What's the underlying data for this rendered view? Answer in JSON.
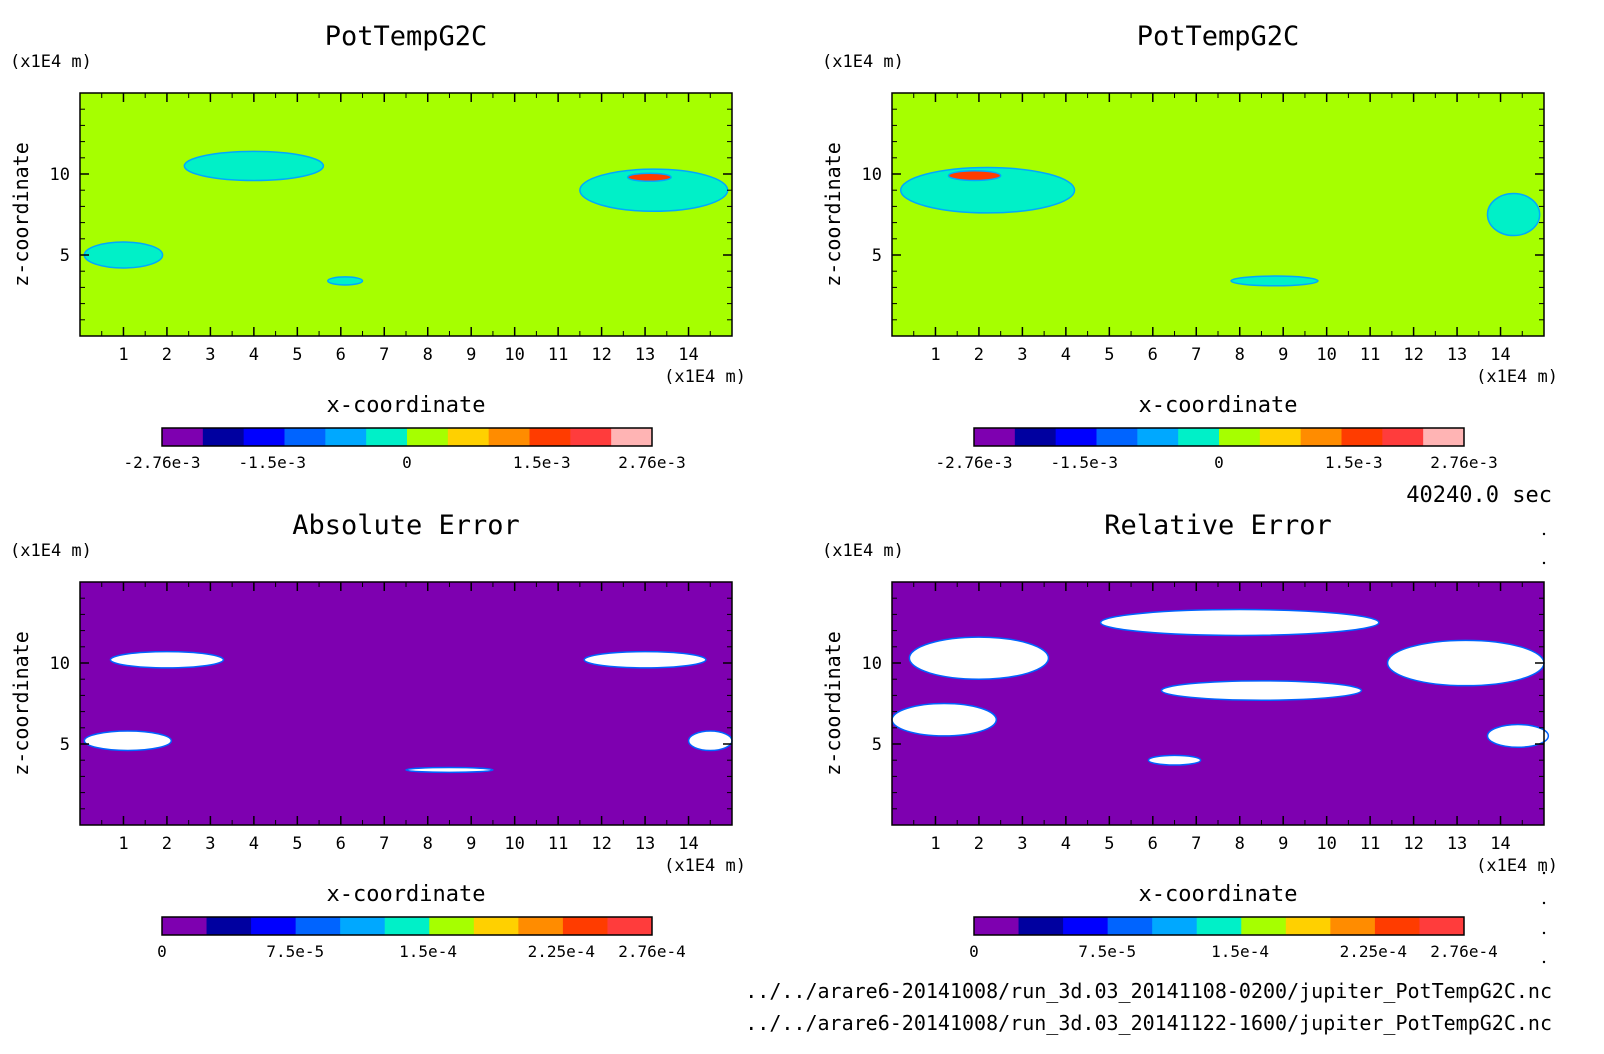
{
  "time_label": "40240.0 sec",
  "files": [
    "../../arare6-20141008/run_3d.03_20141108-0200/jupiter_PotTempG2C.nc",
    "../../arare6-20141008/run_3d.03_20141122-1600/jupiter_PotTempG2C.nc"
  ],
  "chart_data": [
    {
      "type": "heatmap",
      "title": "PotTempG2C",
      "xlabel": "x-coordinate",
      "ylabel": "z-coordinate",
      "x_unit": "(x1E4 m)",
      "y_unit": "(x1E4 m)",
      "xlim": [
        0,
        15
      ],
      "ylim": [
        0,
        15
      ],
      "x_ticks": [
        "1",
        "2",
        "3",
        "4",
        "5",
        "6",
        "7",
        "8",
        "9",
        "10",
        "11",
        "12",
        "13",
        "14"
      ],
      "y_ticks": [
        "5",
        "10"
      ],
      "background_color": "#a6ff00",
      "colorbar": {
        "colors": [
          "#7e00b0",
          "#0000a0",
          "#0000ff",
          "#0064ff",
          "#00a8ff",
          "#00f0c8",
          "#a6ff00",
          "#ffd000",
          "#ff8c00",
          "#ff3c00",
          "#ff3c3c",
          "#ffb4b4"
        ],
        "labels": [
          "-2.76e-3",
          "-1.5e-3",
          "0",
          "1.5e-3",
          "2.76e-3"
        ],
        "label_positions": [
          0,
          0.225,
          0.5,
          0.775,
          1
        ]
      },
      "features": [
        {
          "value": 0.0006,
          "color": "#00f0c8",
          "center": [
            4.0,
            10.5
          ],
          "radius": [
            1.6,
            0.9
          ]
        },
        {
          "value": 0.0008,
          "color": "#00f0c8",
          "center": [
            13.2,
            9.0
          ],
          "radius": [
            1.7,
            1.3
          ]
        },
        {
          "value": 0.0026,
          "color": "#ff3c00",
          "center": [
            13.1,
            9.8
          ],
          "radius": [
            0.5,
            0.25
          ]
        },
        {
          "value": 0.0006,
          "color": "#00f0c8",
          "center": [
            1.0,
            5.0
          ],
          "radius": [
            0.9,
            0.8
          ]
        },
        {
          "value": 0.0004,
          "color": "#00f0c8",
          "center": [
            6.1,
            3.4
          ],
          "radius": [
            0.4,
            0.25
          ]
        }
      ]
    },
    {
      "type": "heatmap",
      "title": "PotTempG2C",
      "xlabel": "x-coordinate",
      "ylabel": "z-coordinate",
      "x_unit": "(x1E4 m)",
      "y_unit": "(x1E4 m)",
      "xlim": [
        0,
        15
      ],
      "ylim": [
        0,
        15
      ],
      "x_ticks": [
        "1",
        "2",
        "3",
        "4",
        "5",
        "6",
        "7",
        "8",
        "9",
        "10",
        "11",
        "12",
        "13",
        "14"
      ],
      "y_ticks": [
        "5",
        "10"
      ],
      "background_color": "#a6ff00",
      "colorbar": {
        "colors": [
          "#7e00b0",
          "#0000a0",
          "#0000ff",
          "#0064ff",
          "#00a8ff",
          "#00f0c8",
          "#a6ff00",
          "#ffd000",
          "#ff8c00",
          "#ff3c00",
          "#ff3c3c",
          "#ffb4b4"
        ],
        "labels": [
          "-2.76e-3",
          "-1.5e-3",
          "0",
          "1.5e-3",
          "2.76e-3"
        ],
        "label_positions": [
          0,
          0.225,
          0.5,
          0.775,
          1
        ]
      },
      "features": [
        {
          "value": 0.0008,
          "color": "#00f0c8",
          "center": [
            2.2,
            9.0
          ],
          "radius": [
            2.0,
            1.4
          ]
        },
        {
          "value": 0.0027,
          "color": "#ff3c00",
          "center": [
            1.9,
            9.9
          ],
          "radius": [
            0.6,
            0.3
          ]
        },
        {
          "value": 0.0005,
          "color": "#00f0c8",
          "center": [
            8.8,
            3.4
          ],
          "radius": [
            1.0,
            0.3
          ]
        },
        {
          "value": 0.0005,
          "color": "#00f0c8",
          "center": [
            14.3,
            7.5
          ],
          "radius": [
            0.6,
            1.3
          ]
        }
      ]
    },
    {
      "type": "heatmap",
      "title": "Absolute Error",
      "xlabel": "x-coordinate",
      "ylabel": "z-coordinate",
      "x_unit": "(x1E4 m)",
      "y_unit": "(x1E4 m)",
      "xlim": [
        0,
        15
      ],
      "ylim": [
        0,
        15
      ],
      "x_ticks": [
        "1",
        "2",
        "3",
        "4",
        "5",
        "6",
        "7",
        "8",
        "9",
        "10",
        "11",
        "12",
        "13",
        "14"
      ],
      "y_ticks": [
        "5",
        "10"
      ],
      "background_color": "#7e00b0",
      "colorbar": {
        "colors": [
          "#7e00b0",
          "#0000a0",
          "#0000ff",
          "#0064ff",
          "#00a8ff",
          "#00f0c8",
          "#a6ff00",
          "#ffd000",
          "#ff8c00",
          "#ff3c00",
          "#ff3c3c"
        ],
        "labels": [
          "0",
          "7.5e-5",
          "1.5e-4",
          "2.25e-4",
          "2.76e-4"
        ],
        "label_positions": [
          0,
          0.272,
          0.543,
          0.815,
          1
        ]
      },
      "features": [
        {
          "value": 0.00028,
          "color": "#ffffff",
          "center": [
            2.0,
            10.2
          ],
          "radius": [
            1.3,
            0.5
          ]
        },
        {
          "value": 0.00028,
          "color": "#ffffff",
          "center": [
            13.0,
            10.2
          ],
          "radius": [
            1.4,
            0.5
          ]
        },
        {
          "value": 0.00026,
          "color": "#ffffff",
          "center": [
            1.1,
            5.2
          ],
          "radius": [
            1.0,
            0.6
          ]
        },
        {
          "value": 0.00026,
          "color": "#ffffff",
          "center": [
            14.5,
            5.2
          ],
          "radius": [
            0.5,
            0.6
          ]
        },
        {
          "value": 0.00024,
          "color": "#ffffff",
          "center": [
            8.5,
            3.4
          ],
          "radius": [
            1.0,
            0.15
          ]
        }
      ]
    },
    {
      "type": "heatmap",
      "title": "Relative Error",
      "xlabel": "x-coordinate",
      "ylabel": "z-coordinate",
      "x_unit": "(x1E4 m)",
      "y_unit": "(x1E4 m)",
      "xlim": [
        0,
        15
      ],
      "ylim": [
        0,
        15
      ],
      "x_ticks": [
        "1",
        "2",
        "3",
        "4",
        "5",
        "6",
        "7",
        "8",
        "9",
        "10",
        "11",
        "12",
        "13",
        "14"
      ],
      "y_ticks": [
        "5",
        "10"
      ],
      "background_color": "#7e00b0",
      "colorbar": {
        "colors": [
          "#7e00b0",
          "#0000a0",
          "#0000ff",
          "#0064ff",
          "#00a8ff",
          "#00f0c8",
          "#a6ff00",
          "#ffd000",
          "#ff8c00",
          "#ff3c00",
          "#ff3c3c"
        ],
        "labels": [
          "0",
          "7.5e-5",
          "1.5e-4",
          "2.25e-4",
          "2.76e-4"
        ],
        "label_positions": [
          0,
          0.272,
          0.543,
          0.815,
          1
        ]
      },
      "features": [
        {
          "value": 0.00028,
          "color": "#ffffff",
          "center": [
            2.0,
            10.3
          ],
          "radius": [
            1.6,
            1.3
          ]
        },
        {
          "value": 0.00028,
          "color": "#ffffff",
          "center": [
            13.2,
            10.0
          ],
          "radius": [
            1.8,
            1.4
          ]
        },
        {
          "value": 0.00028,
          "color": "#ffffff",
          "center": [
            8.0,
            12.5
          ],
          "radius": [
            3.2,
            0.8
          ]
        },
        {
          "value": 0.00028,
          "color": "#ffffff",
          "center": [
            8.5,
            8.3
          ],
          "radius": [
            2.3,
            0.6
          ]
        },
        {
          "value": 0.00028,
          "color": "#ffffff",
          "center": [
            1.2,
            6.5
          ],
          "radius": [
            1.2,
            1.0
          ]
        },
        {
          "value": 0.00028,
          "color": "#ffffff",
          "center": [
            14.4,
            5.5
          ],
          "radius": [
            0.7,
            0.7
          ]
        },
        {
          "value": 0.00028,
          "color": "#ffffff",
          "center": [
            6.5,
            4.0
          ],
          "radius": [
            0.6,
            0.3
          ]
        }
      ]
    }
  ]
}
